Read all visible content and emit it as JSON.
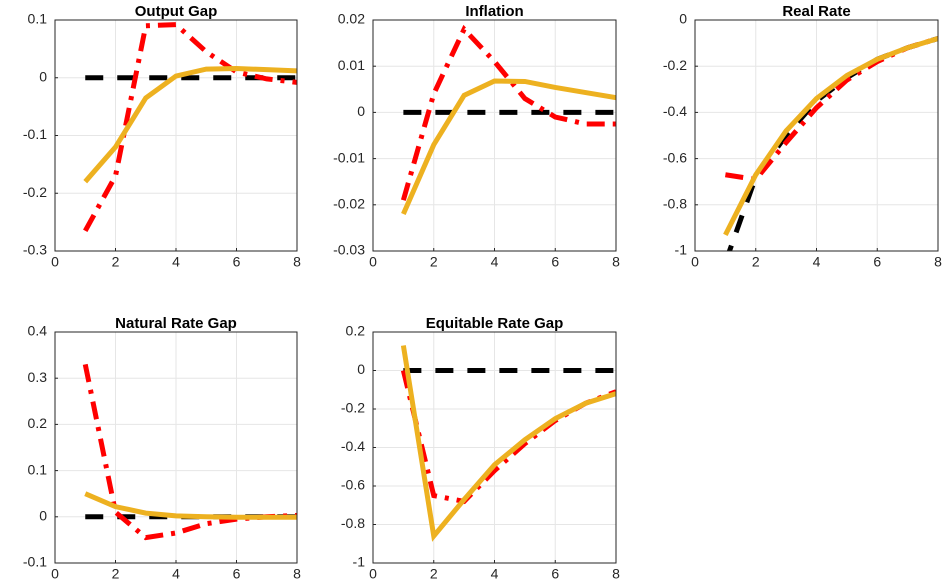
{
  "chart_data": [
    {
      "type": "line",
      "title": "Output Gap",
      "x": [
        1,
        2,
        3,
        4,
        5,
        6,
        7,
        8
      ],
      "xlim": [
        0,
        8
      ],
      "xticks": [
        0,
        2,
        4,
        6,
        8
      ],
      "ylim": [
        -0.3,
        0.1
      ],
      "yticks": [
        -0.3,
        -0.2,
        -0.1,
        0,
        0.1
      ],
      "grid": true,
      "series": [
        {
          "color": "#000000",
          "style": "dashed",
          "values": [
            0,
            0,
            0,
            0,
            0,
            0,
            0,
            0
          ]
        },
        {
          "color": "#ff0000",
          "style": "dashdot",
          "values": [
            -0.265,
            -0.17,
            0.09,
            0.092,
            0.045,
            0.01,
            -0.002,
            -0.008
          ]
        },
        {
          "color": "#edb120",
          "style": "solid",
          "values": [
            -0.18,
            -0.12,
            -0.035,
            0.003,
            0.015,
            0.016,
            0.014,
            0.012
          ]
        }
      ]
    },
    {
      "type": "line",
      "title": "Inflation",
      "x": [
        1,
        2,
        3,
        4,
        5,
        6,
        7,
        8
      ],
      "xlim": [
        0,
        8
      ],
      "xticks": [
        0,
        2,
        4,
        6,
        8
      ],
      "ylim": [
        -0.03,
        0.02
      ],
      "yticks": [
        -0.03,
        -0.02,
        -0.01,
        0,
        0.01,
        0.02
      ],
      "grid": true,
      "series": [
        {
          "color": "#000000",
          "style": "dashed",
          "values": [
            0,
            0,
            0,
            0,
            0,
            0,
            0,
            0
          ]
        },
        {
          "color": "#ff0000",
          "style": "dashdot",
          "values": [
            -0.019,
            0.004,
            0.018,
            0.011,
            0.003,
            -0.001,
            -0.0025,
            -0.0025
          ]
        },
        {
          "color": "#edb120",
          "style": "solid",
          "values": [
            -0.022,
            -0.007,
            0.0037,
            0.0068,
            0.0067,
            0.0054,
            0.0043,
            0.0032
          ]
        }
      ]
    },
    {
      "type": "line",
      "title": "Real Rate",
      "x": [
        1,
        2,
        3,
        4,
        5,
        6,
        7,
        8
      ],
      "xlim": [
        0,
        8
      ],
      "xticks": [
        0,
        2,
        4,
        6,
        8
      ],
      "ylim": [
        -1,
        0
      ],
      "yticks": [
        -1,
        -0.8,
        -0.6,
        -0.4,
        -0.2,
        0
      ],
      "grid": true,
      "series": [
        {
          "color": "#000000",
          "style": "dashed",
          "values": [
            -1.05,
            -0.68,
            -0.5,
            -0.35,
            -0.25,
            -0.17,
            -0.12,
            -0.08
          ]
        },
        {
          "color": "#ff0000",
          "style": "dashdot",
          "values": [
            -0.67,
            -0.69,
            -0.53,
            -0.38,
            -0.26,
            -0.18,
            -0.12,
            -0.08
          ]
        },
        {
          "color": "#edb120",
          "style": "solid",
          "values": [
            -0.93,
            -0.67,
            -0.48,
            -0.34,
            -0.24,
            -0.17,
            -0.12,
            -0.08
          ]
        }
      ]
    },
    {
      "type": "line",
      "title": "Natural Rate Gap",
      "x": [
        1,
        2,
        3,
        4,
        5,
        6,
        7,
        8
      ],
      "xlim": [
        0,
        8
      ],
      "xticks": [
        0,
        2,
        4,
        6,
        8
      ],
      "ylim": [
        -0.1,
        0.4
      ],
      "yticks": [
        -0.1,
        0,
        0.1,
        0.2,
        0.3,
        0.4
      ],
      "grid": true,
      "series": [
        {
          "color": "#000000",
          "style": "dashed",
          "values": [
            0,
            0,
            0,
            0,
            0,
            0,
            0,
            0
          ]
        },
        {
          "color": "#ff0000",
          "style": "dashdot",
          "values": [
            0.33,
            0.01,
            -0.045,
            -0.035,
            -0.015,
            -0.005,
            0,
            0.003
          ]
        },
        {
          "color": "#edb120",
          "style": "solid",
          "values": [
            0.05,
            0.022,
            0.008,
            0.002,
            0,
            -0.001,
            -0.001,
            -0.001
          ]
        }
      ]
    },
    {
      "type": "line",
      "title": "Equitable Rate Gap",
      "x": [
        1,
        2,
        3,
        4,
        5,
        6,
        7,
        8
      ],
      "xlim": [
        0,
        8
      ],
      "xticks": [
        0,
        2,
        4,
        6,
        8
      ],
      "ylim": [
        -1,
        0.2
      ],
      "yticks": [
        -1,
        -0.8,
        -0.6,
        -0.4,
        -0.2,
        0,
        0.2
      ],
      "grid": true,
      "series": [
        {
          "color": "#000000",
          "style": "dashed",
          "values": [
            0,
            0,
            0,
            0,
            0,
            0,
            0,
            0
          ]
        },
        {
          "color": "#ff0000",
          "style": "dashdot",
          "values": [
            0,
            -0.65,
            -0.68,
            -0.52,
            -0.38,
            -0.26,
            -0.17,
            -0.11
          ]
        },
        {
          "color": "#edb120",
          "style": "solid",
          "values": [
            0.13,
            -0.86,
            -0.67,
            -0.49,
            -0.36,
            -0.25,
            -0.17,
            -0.12
          ]
        }
      ]
    }
  ]
}
